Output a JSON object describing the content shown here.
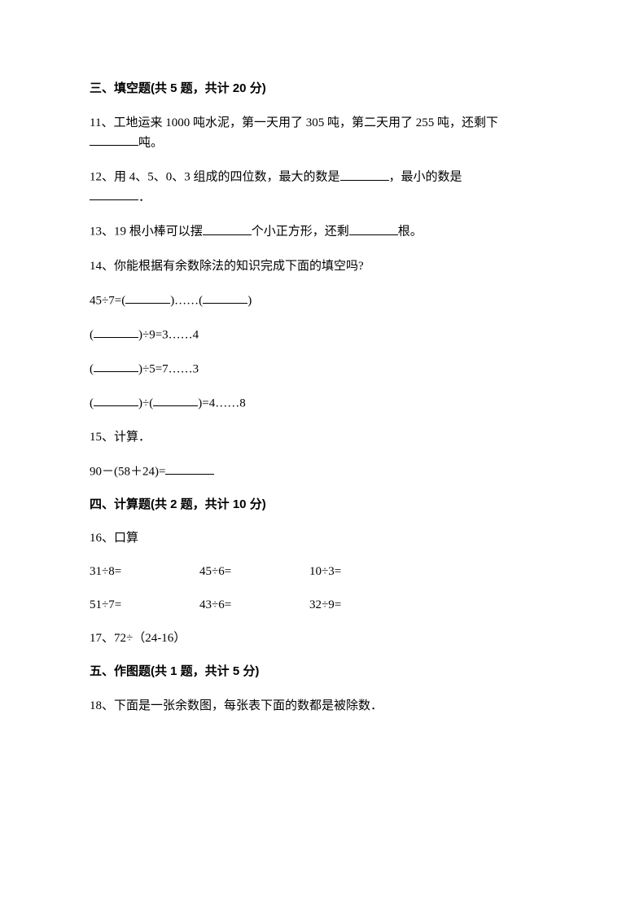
{
  "sections": {
    "s3": {
      "header": "三、填空题(共 5 题，共计 20 分)",
      "q11_prefix": "11、工地运来 1000 吨水泥，第一天用了 305 吨，第二天用了 255 吨，还剩下",
      "q11_suffix": "吨。",
      "q12_prefix": "12、用 4、5、0、3 组成的四位数，最大的数是",
      "q12_mid": "，最小的数是",
      "q12_suffix": "．",
      "q13_prefix": "13、19 根小棒可以摆",
      "q13_mid": "个小正方形，还剩",
      "q13_suffix": "根。",
      "q14": "14、你能根据有余数除法的知识完成下面的填空吗?",
      "q14_line1_a": "45÷7=(",
      "q14_line1_b": ")……(",
      "q14_line1_c": ")",
      "q14_line2_a": "(",
      "q14_line2_b": ")÷9=3……4",
      "q14_line3_a": "(",
      "q14_line3_b": ")÷5=7……3",
      "q14_line4_a": "(",
      "q14_line4_b": ")÷(",
      "q14_line4_c": ")=4……8",
      "q15": "15、计算．",
      "q15_line_a": "90－(58＋24)="
    },
    "s4": {
      "header": "四、计算题(共 2 题，共计 10 分)",
      "q16": "16、口算",
      "q16_r1c1": "31÷8=",
      "q16_r1c2": "45÷6=",
      "q16_r1c3": "10÷3=",
      "q16_r2c1": "51÷7=",
      "q16_r2c2": "43÷6=",
      "q16_r2c3": "32÷9=",
      "q17": "17、72÷（24-16）"
    },
    "s5": {
      "header": "五、作图题(共 1 题，共计 5 分)",
      "q18": "18、下面是一张余数图，每张表下面的数都是被除数．"
    }
  }
}
